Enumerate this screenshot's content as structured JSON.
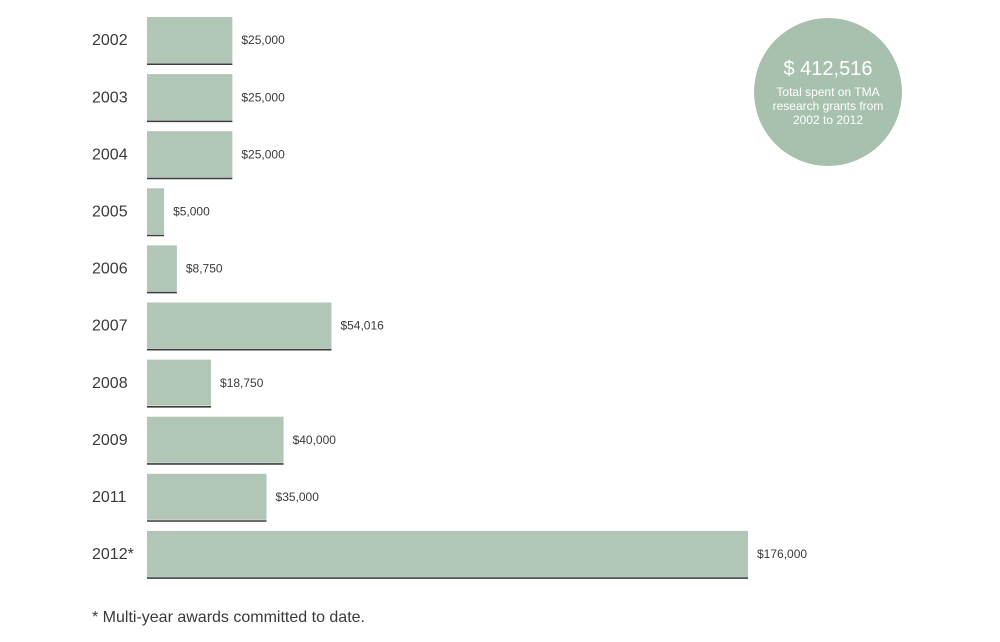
{
  "chart_data": {
    "type": "bar",
    "orientation": "horizontal",
    "categories": [
      "2002",
      "2003",
      "2004",
      "2005",
      "2006",
      "2007",
      "2008",
      "2009",
      "2011",
      "2012*"
    ],
    "values": [
      25000,
      25000,
      25000,
      5000,
      8750,
      54016,
      18750,
      40000,
      35000,
      176000
    ],
    "value_labels": [
      "$25,000",
      "$25,000",
      "$25,000",
      "$5,000",
      "$8,750",
      "$54,016",
      "$18,750",
      "$40,000",
      "$35,000",
      "$176,000"
    ],
    "xlim": [
      0,
      176000
    ],
    "grid": false,
    "bar_color": "#b1c6b7",
    "baseline_color": "#3d3d3d"
  },
  "total": {
    "amount": "$ 412,516",
    "caption": "Total spent on TMA research grants from 2002 to 2012",
    "color": "#a8c0ae"
  },
  "footnote": "* Multi-year awards committed to date."
}
